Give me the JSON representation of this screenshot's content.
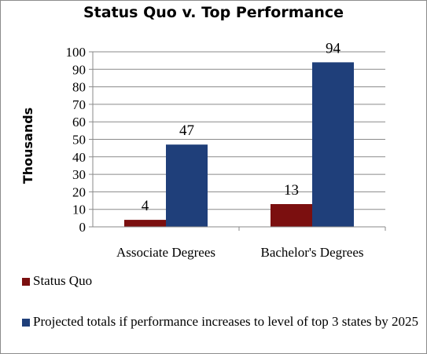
{
  "chart_data": {
    "type": "bar",
    "title": "Status Quo v. Top Performance",
    "ylabel": "Thousands",
    "xlabel": "",
    "categories": [
      "Associate Degrees",
      "Bachelor's Degrees"
    ],
    "series": [
      {
        "name": "Status Quo",
        "color": "#7b0f0f",
        "values": [
          4,
          13
        ]
      },
      {
        "name": "Projected totals if performance increases to level of top 3 states by 2025",
        "color": "#1f3f7a",
        "values": [
          47,
          94
        ]
      }
    ],
    "ylim": [
      0,
      100
    ],
    "yticks": [
      0,
      10,
      20,
      30,
      40,
      50,
      60,
      70,
      80,
      90,
      100
    ],
    "grid": true,
    "legend_position": "bottom"
  }
}
